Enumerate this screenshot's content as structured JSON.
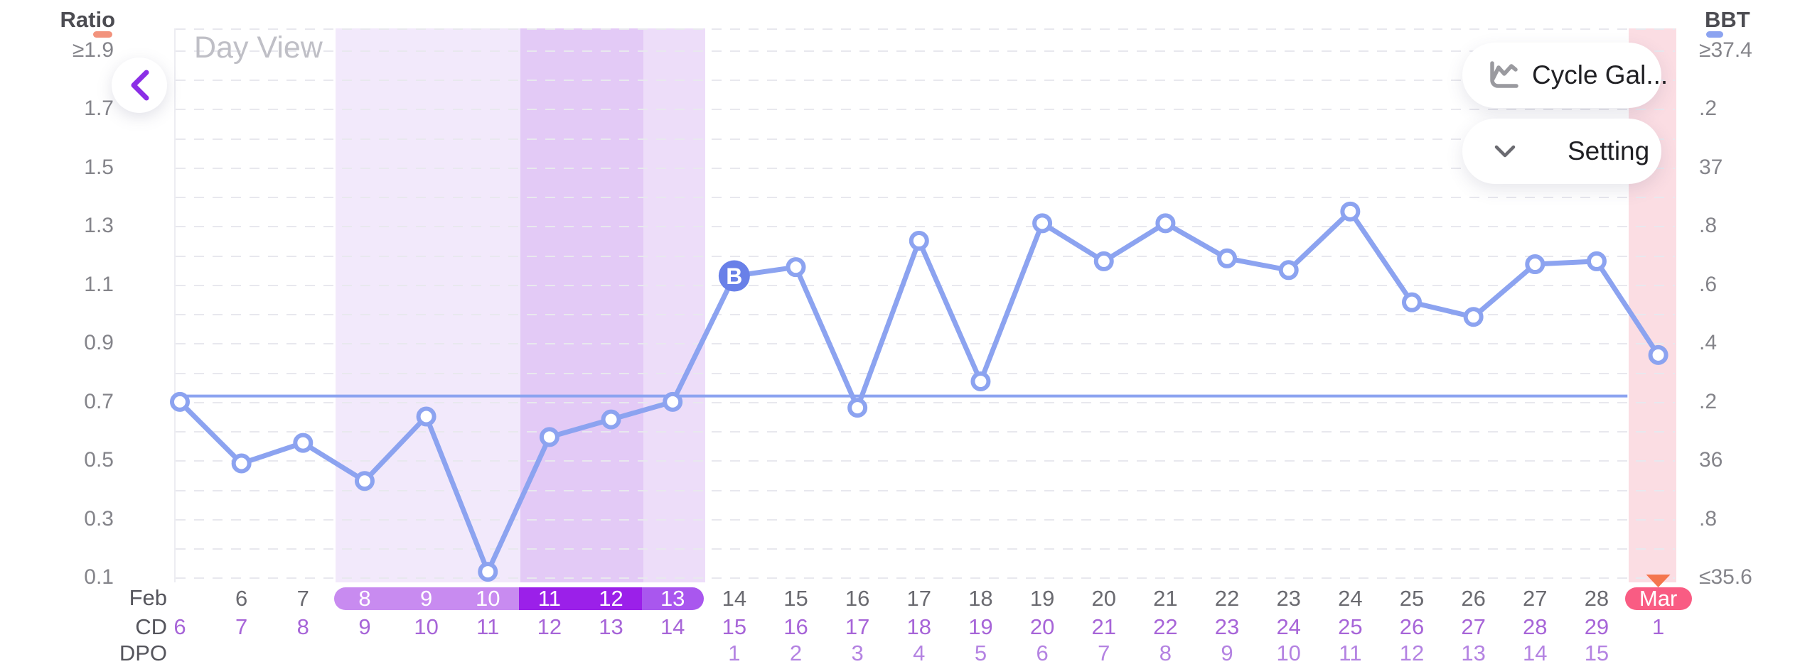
{
  "header": {
    "view_label": "Day View",
    "back_button": {
      "icon": "chevron-left-icon",
      "color": "#8B2FE6"
    },
    "buttons": [
      {
        "label": "Cycle Gal...",
        "icon": "line-chart-icon"
      },
      {
        "label": "Setting",
        "icon": "chevron-down-icon"
      }
    ]
  },
  "chart_data": {
    "type": "line",
    "title": "Day View",
    "left_axis": {
      "title": "Ratio",
      "legend_color": "#F2937D",
      "tick_labels": [
        "≥1.9",
        "1.7",
        "1.5",
        "1.3",
        "1.1",
        "0.9",
        "0.7",
        "0.5",
        "0.3",
        "0.1"
      ],
      "ylim": [
        0.1,
        1.9
      ]
    },
    "right_axis": {
      "title": "BBT",
      "legend_color": "#8CA3F0",
      "tick_labels": [
        "≥37.4",
        ".2",
        "37",
        ".8",
        ".6",
        ".4",
        ".2",
        "36",
        ".8",
        "≤35.6"
      ],
      "ylim": [
        35.6,
        37.4
      ]
    },
    "grid": "horizontal-dashed-every-0.1",
    "x_labels": [
      "Feb",
      "6",
      "7",
      "8",
      "9",
      "10",
      "11",
      "12",
      "13",
      "14",
      "15",
      "16",
      "17",
      "18",
      "19",
      "20",
      "21",
      "22",
      "23",
      "24",
      "25",
      "26",
      "27",
      "28",
      "Mar"
    ],
    "row_headers": {
      "month": "Feb",
      "cd": "CD",
      "dpo": "DPO"
    },
    "cd_row": [
      "6",
      "7",
      "8",
      "9",
      "10",
      "11",
      "12",
      "13",
      "14",
      "15",
      "16",
      "17",
      "18",
      "19",
      "20",
      "21",
      "22",
      "23",
      "24",
      "25",
      "26",
      "27",
      "28",
      "29",
      "1"
    ],
    "dpo_row": [
      "",
      "",
      "",
      "",
      "",
      "",
      "",
      "",
      "",
      "1",
      "2",
      "3",
      "4",
      "5",
      "6",
      "7",
      "8",
      "9",
      "10",
      "11",
      "12",
      "13",
      "14",
      "15",
      ""
    ],
    "series": [
      {
        "name": "Ratio",
        "color": "#8CA3F0",
        "values": [
          0.7,
          0.49,
          0.56,
          0.43,
          0.65,
          0.12,
          0.58,
          0.64,
          0.7,
          1.13,
          1.16,
          0.68,
          1.25,
          0.77,
          1.31,
          1.18,
          1.31,
          1.19,
          1.15,
          1.35,
          1.04,
          0.99,
          1.17,
          1.18,
          0.86
        ]
      }
    ],
    "coverline": {
      "value": 0.72,
      "color": "#8CA3F0"
    },
    "baseline_marker": {
      "index": 9,
      "label": "B",
      "color": "#6980E8"
    },
    "period_start_marker": {
      "index": 24,
      "shape": "triangle-down",
      "color": "#F4764E"
    },
    "bands": [
      {
        "name": "fertile-window-light",
        "start_index": 3,
        "end_index": 5,
        "color": "#F2E9FB"
      },
      {
        "name": "fertile-window-peak",
        "start_index": 6,
        "end_index": 7,
        "color": "#E3CAF6"
      },
      {
        "name": "fertile-window-end",
        "start_index": 8,
        "end_index": 8,
        "color": "#EDDDF9"
      },
      {
        "name": "period",
        "start_index": 24,
        "end_index": 24,
        "color": "#FBDDE3"
      }
    ],
    "date_pill": {
      "segments": [
        {
          "start_index": 3,
          "end_index": 5,
          "color": "#C88BF0",
          "cap": "left"
        },
        {
          "start_index": 6,
          "end_index": 7,
          "color": "#9B20E9",
          "cap": "none"
        },
        {
          "start_index": 8,
          "end_index": 8,
          "color": "#A957EE",
          "cap": "right"
        }
      ],
      "period_pill": {
        "index": 24,
        "color": "#F95C83"
      }
    },
    "point_style": {
      "radius": 11,
      "fill": "#ffffff",
      "stroke": "#8CA3F0"
    }
  }
}
